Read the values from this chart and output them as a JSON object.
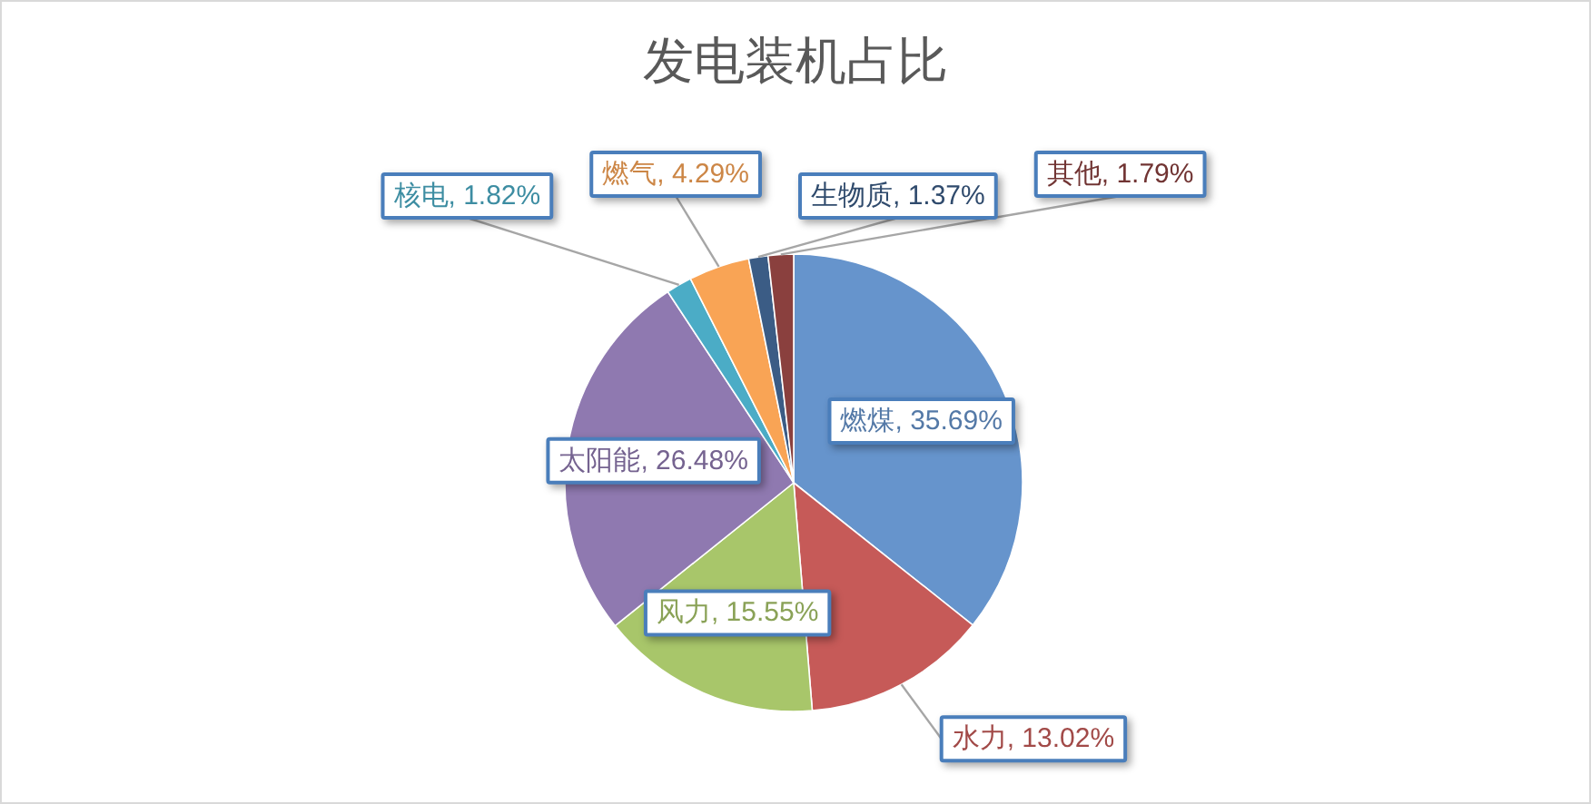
{
  "chart_data": {
    "type": "pie",
    "title": "发电装机占比",
    "categories": [
      "燃煤",
      "水力",
      "风力",
      "太阳能",
      "核电",
      "燃气",
      "生物质",
      "其他"
    ],
    "values": [
      35.69,
      13.02,
      15.55,
      26.48,
      1.82,
      4.29,
      1.37,
      1.79
    ],
    "colors": [
      "#6694cc",
      "#c65a58",
      "#a8c66a",
      "#8f79b0",
      "#4bacc6",
      "#f9a455",
      "#3b5c85",
      "#8a403e"
    ],
    "value_labels": [
      "35.69%",
      "13.02%",
      "15.55%",
      "26.48%",
      "1.82%",
      "4.29%",
      "1.37%",
      "1.79%"
    ]
  }
}
